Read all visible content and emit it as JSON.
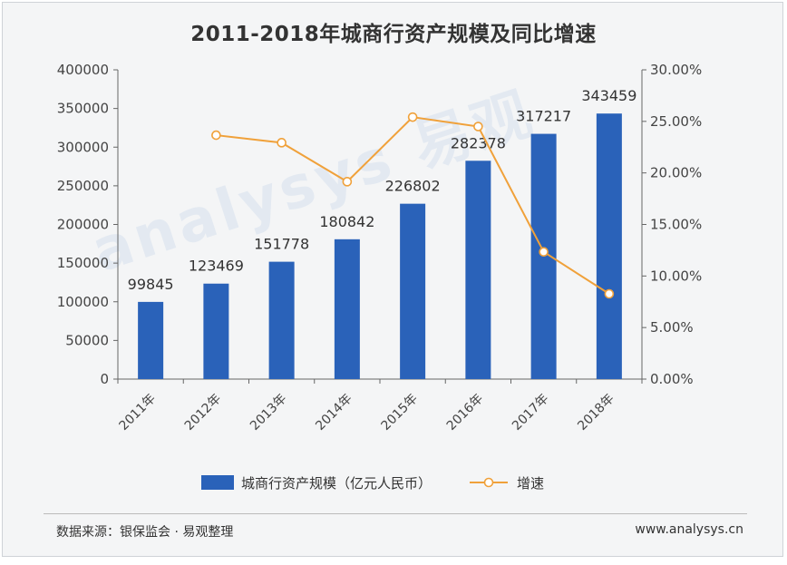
{
  "title": "2011-2018年城商行资产规模及同比增速",
  "chart_data": {
    "type": "bar",
    "categories": [
      "2011年",
      "2012年",
      "2013年",
      "2014年",
      "2015年",
      "2016年",
      "2017年",
      "2018年"
    ],
    "series": [
      {
        "name": "城商行资产规模（亿元人民币）",
        "type": "bar",
        "axis": "left",
        "values": [
          99845,
          123469,
          151778,
          180842,
          226802,
          282378,
          317217,
          343459
        ]
      },
      {
        "name": "增速",
        "type": "line",
        "axis": "right",
        "values": [
          null,
          23.66,
          22.93,
          19.15,
          25.41,
          24.5,
          12.34,
          8.27
        ]
      }
    ],
    "y_left": {
      "range": [
        0,
        400000
      ],
      "ticks": [
        "0",
        "50000",
        "100000",
        "150000",
        "200000",
        "250000",
        "300000",
        "350000",
        "400000"
      ]
    },
    "y_right": {
      "range": [
        0,
        30
      ],
      "ticks": [
        "0.00%",
        "5.00%",
        "10.00%",
        "15.00%",
        "20.00%",
        "25.00%",
        "30.00%"
      ]
    },
    "grid": false,
    "legend": "bottom",
    "colors": {
      "bar": "#2a62b9",
      "line": "#f0a13a",
      "marker_fill": "#ffffff"
    }
  },
  "watermark": "analysys 易观",
  "footer": {
    "source": "数据来源：银保监会 · 易观整理",
    "url": "www.analysys.cn"
  }
}
